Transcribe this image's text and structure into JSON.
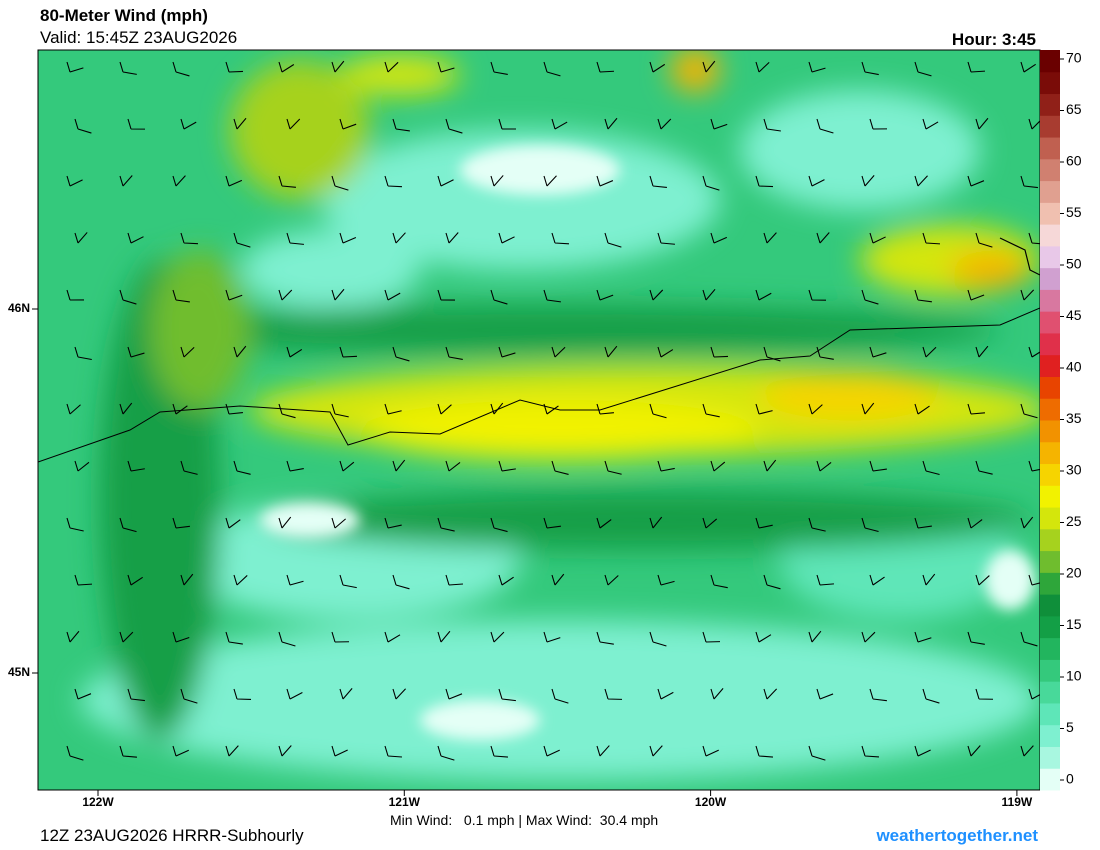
{
  "header": {
    "title": "80-Meter Wind (mph)",
    "valid": "Valid: 15:45Z 23AUG2026",
    "hour": "Hour: 3:45"
  },
  "map": {
    "lon_ticks": [
      {
        "value": -122,
        "label": "122W"
      },
      {
        "value": -121,
        "label": "121W"
      },
      {
        "value": -120,
        "label": "120W"
      },
      {
        "value": -119,
        "label": "119W"
      }
    ],
    "lat_ticks": [
      {
        "value": 46,
        "label": "46N"
      },
      {
        "value": 45,
        "label": "45N"
      }
    ]
  },
  "colorbar": {
    "lim": [
      0,
      70
    ],
    "ticks": [
      0,
      5,
      10,
      15,
      20,
      25,
      30,
      35,
      40,
      45,
      50,
      55,
      60,
      65,
      70
    ],
    "colors": [
      "#e4fff6",
      "#a8f7e0",
      "#7ef0d0",
      "#5ee6b8",
      "#48d99a",
      "#34c97c",
      "#22b55e",
      "#139f46",
      "#0f8f3a",
      "#2ea63a",
      "#6fbd2e",
      "#a6d21e",
      "#d4e60c",
      "#f2f200",
      "#f6d400",
      "#f5b400",
      "#f29200",
      "#ee6c00",
      "#e84400",
      "#e02020",
      "#e0304a",
      "#e05070",
      "#d878a0",
      "#d0a0d0",
      "#e8c8e8",
      "#f6d8d8",
      "#f0c0b0",
      "#e0a090",
      "#d08070",
      "#c06050",
      "#a83c30",
      "#902018",
      "#7a0c08",
      "#6a0000"
    ]
  },
  "footer": {
    "run": "12Z 23AUG2026 HRRR-Subhourly",
    "stats": "Min Wind:   0.1 mph | Max Wind:  30.4 mph",
    "site": "weathertogether.net"
  }
}
